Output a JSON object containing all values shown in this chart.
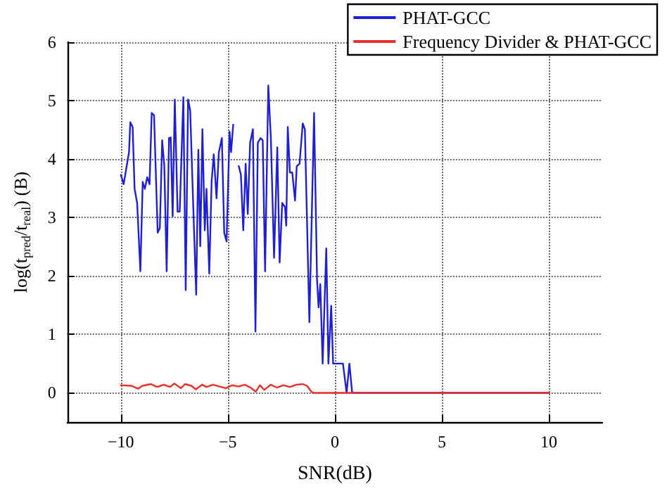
{
  "chart_data": {
    "type": "line",
    "xlabel": "SNR(dB)",
    "ylabel": "log(t$_{pred}$/t$_{real}$) (B)",
    "xlim": [
      -12.5,
      12.5
    ],
    "xticks": [
      -10,
      -5,
      0,
      5,
      10
    ],
    "ylim": [
      -0.5,
      6
    ],
    "yticks": [
      0,
      1,
      2,
      3,
      4,
      5,
      6
    ],
    "grid": true,
    "legend": "top right",
    "marker": "none",
    "line_style": "solid",
    "series": [
      {
        "name": "PHAT-GCC",
        "color": "#1f1fd6",
        "x": [
          -10,
          -9.87,
          -9.62,
          -9.56,
          -9.45,
          -9.36,
          -9.24,
          -9.09,
          -8.98,
          -8.88,
          -8.77,
          -8.66,
          -8.56,
          -8.45,
          -8.28,
          -8.18,
          -8.07,
          -7.97,
          -7.86,
          -7.75,
          -7.67,
          -7.58,
          -7.48,
          -7.35,
          -7.25,
          -7.08,
          -6.97,
          -6.86,
          -6.76,
          -6.61,
          -6.48,
          -6.38,
          -6.29,
          -6.19,
          -6.08,
          -6.0,
          -5.87,
          -5.76,
          -5.66,
          -5.53,
          -5.42,
          -5.28,
          -5.17,
          -5.06,
          -4.92,
          -4.85,
          -4.75,
          -4.64,
          -4.56,
          -4.49,
          -4.39,
          -4.28,
          -4.17,
          -4.07,
          -3.96,
          -3.83,
          -3.71,
          -3.6,
          -3.47,
          -3.37,
          -3.26,
          -3.11,
          -2.99,
          -2.84,
          -2.69,
          -2.58,
          -2.46,
          -2.33,
          -2.27,
          -2.2,
          -2.1,
          -1.99,
          -1.86,
          -1.78,
          -1.65,
          -1.5,
          -1.4,
          -1.19,
          -0.97,
          -0.83,
          -0.76,
          -0.68,
          -0.57,
          -0.4,
          -0.3,
          -0.17,
          -0.08,
          0.38,
          0.55,
          0.68,
          0.81,
          10
        ],
        "values": [
          3.73,
          3.57,
          4.12,
          4.63,
          4.55,
          3.49,
          3.25,
          2.08,
          3.61,
          3.49,
          3.69,
          3.57,
          4.79,
          4.75,
          2.74,
          2.82,
          4.32,
          3.88,
          2.08,
          4.36,
          4.37,
          3.02,
          5.02,
          3.1,
          3.1,
          5.06,
          1.76,
          5.02,
          4.83,
          3.1,
          1.68,
          4.16,
          2.51,
          4.51,
          2.78,
          3.49,
          2.04,
          3.61,
          4.08,
          3.33,
          4.12,
          4.36,
          2.74,
          2.59,
          4.47,
          4.12,
          4.59,
          null,
          null,
          3.88,
          3.73,
          2.78,
          3.92,
          3.06,
          4.28,
          4.51,
          1.05,
          4.28,
          4.36,
          4.32,
          2.08,
          5.26,
          4.36,
          2.31,
          4.2,
          2.23,
          3.25,
          3.18,
          2.86,
          4.55,
          3.77,
          3.77,
          3.29,
          3.88,
          3.92,
          4.61,
          4.51,
          1.21,
          4.79,
          1.92,
          1.46,
          1.86,
          0.5,
          2.47,
          0.5,
          1.49,
          0.5,
          0.5,
          0,
          0.5,
          0,
          0
        ]
      },
      {
        "name": "Frequency Divider & PHAT-GCC",
        "color": "#e8302a",
        "x": [
          -10,
          -9.5,
          -9.2,
          -9,
          -8.6,
          -8.3,
          -8,
          -7.7,
          -7.5,
          -7.2,
          -7,
          -6.7,
          -6.5,
          -6.2,
          -6,
          -5.7,
          -5.4,
          -5.1,
          -4.8,
          -4.5,
          -4.2,
          -3.9,
          -3.7,
          -3.5,
          -3.3,
          -3,
          -2.7,
          -2.4,
          -2.1,
          -1.8,
          -1.5,
          -1.3,
          -1.1,
          -1,
          10
        ],
        "values": [
          0.13,
          0.12,
          0.07,
          0.12,
          0.15,
          0.1,
          0.14,
          0.1,
          0.16,
          0.08,
          0.15,
          0.12,
          0.06,
          0.14,
          0.1,
          0.14,
          0.11,
          0.08,
          0.13,
          0.11,
          0.14,
          0.08,
          0.02,
          0.13,
          0.05,
          0.14,
          0.09,
          0.13,
          0.1,
          0.14,
          0.15,
          0.12,
          0.02,
          0,
          0
        ]
      }
    ]
  }
}
